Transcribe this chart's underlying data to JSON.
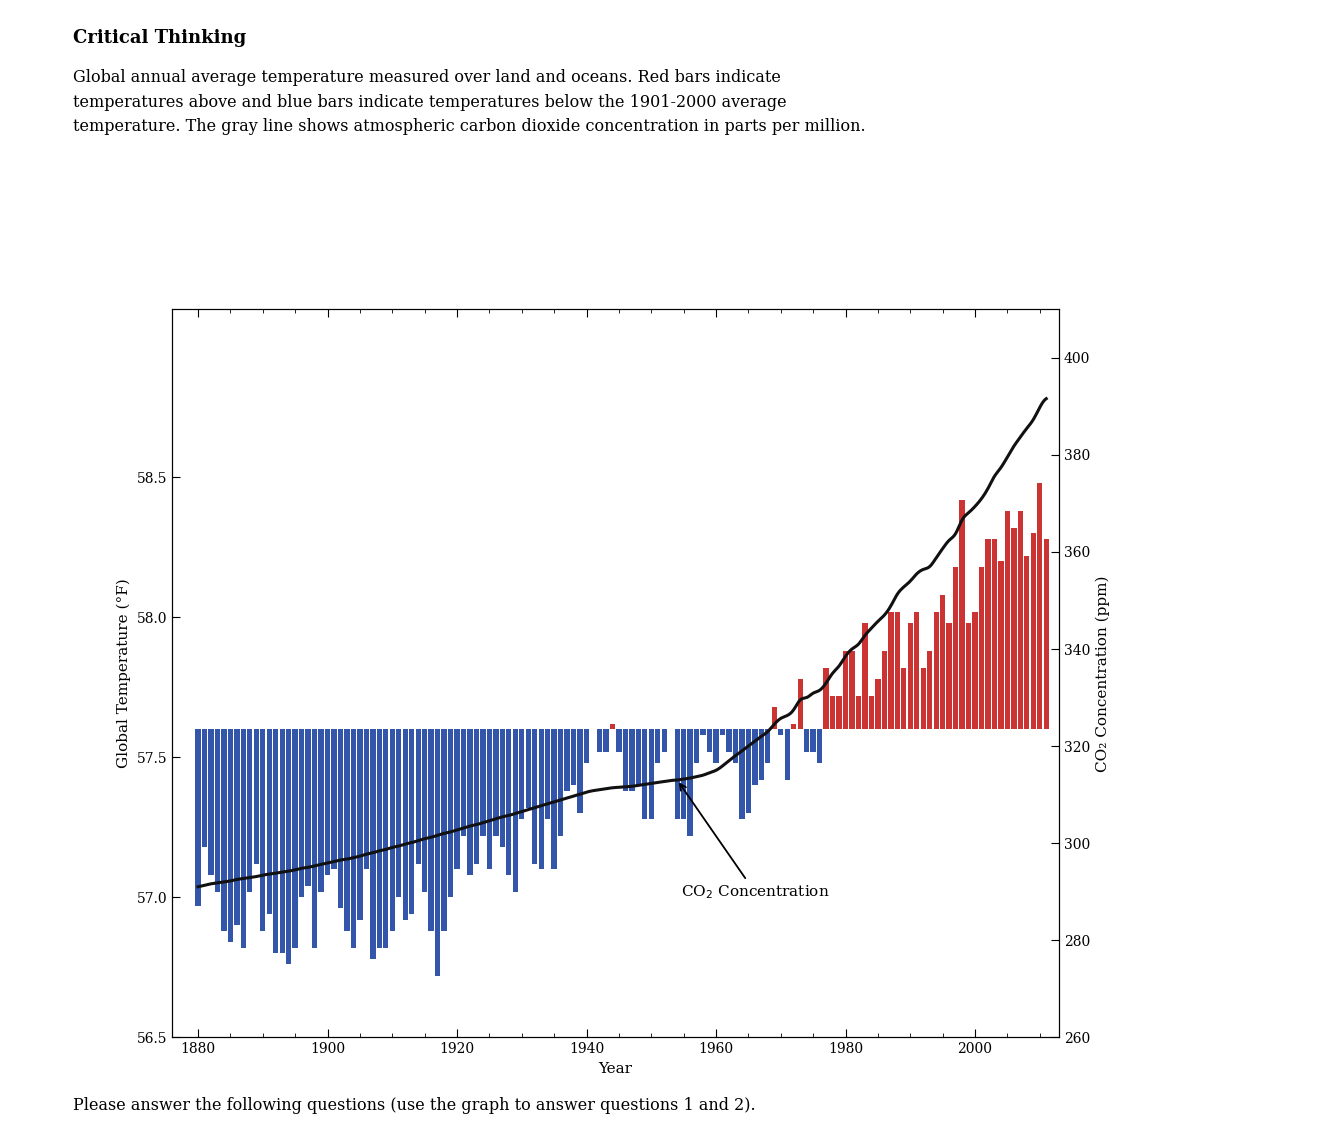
{
  "title_bold": "Critical Thinking",
  "description": "Global annual average temperature measured over land and oceans. Red bars indicate\ntemperatures above and blue bars indicate temperatures below the 1901-2000 average\ntemperature. The gray line shows atmospheric carbon dioxide concentration in parts per million.",
  "footer": "Please answer the following questions (use the graph to answer questions 1 and 2).",
  "xlabel": "Year",
  "ylabel_left": "Global Temperature (°F)",
  "ylabel_right": "CO₂ Concentration (ppm)",
  "xlim": [
    1876,
    2013
  ],
  "ylim_left": [
    56.5,
    59.1
  ],
  "ylim_right": [
    260,
    410
  ],
  "yticks_left": [
    56.5,
    57.0,
    57.5,
    58.0,
    58.5
  ],
  "yticks_right": [
    260,
    280,
    300,
    320,
    340,
    360,
    380,
    400
  ],
  "xticks": [
    1880,
    1900,
    1920,
    1940,
    1960,
    1980,
    2000
  ],
  "baseline": 57.6,
  "years": [
    1880,
    1881,
    1882,
    1883,
    1884,
    1885,
    1886,
    1887,
    1888,
    1889,
    1890,
    1891,
    1892,
    1893,
    1894,
    1895,
    1896,
    1897,
    1898,
    1899,
    1900,
    1901,
    1902,
    1903,
    1904,
    1905,
    1906,
    1907,
    1908,
    1909,
    1910,
    1911,
    1912,
    1913,
    1914,
    1915,
    1916,
    1917,
    1918,
    1919,
    1920,
    1921,
    1922,
    1923,
    1924,
    1925,
    1926,
    1927,
    1928,
    1929,
    1930,
    1931,
    1932,
    1933,
    1934,
    1935,
    1936,
    1937,
    1938,
    1939,
    1940,
    1941,
    1942,
    1943,
    1944,
    1945,
    1946,
    1947,
    1948,
    1949,
    1950,
    1951,
    1952,
    1953,
    1954,
    1955,
    1956,
    1957,
    1958,
    1959,
    1960,
    1961,
    1962,
    1963,
    1964,
    1965,
    1966,
    1967,
    1968,
    1969,
    1970,
    1971,
    1972,
    1973,
    1974,
    1975,
    1976,
    1977,
    1978,
    1979,
    1980,
    1981,
    1982,
    1983,
    1984,
    1985,
    1986,
    1987,
    1988,
    1989,
    1990,
    1991,
    1992,
    1993,
    1994,
    1995,
    1996,
    1997,
    1998,
    1999,
    2000,
    2001,
    2002,
    2003,
    2004,
    2005,
    2006,
    2007,
    2008,
    2009,
    2010,
    2011
  ],
  "temp": [
    56.97,
    57.18,
    57.08,
    57.02,
    56.88,
    56.84,
    56.9,
    56.82,
    57.02,
    57.12,
    56.88,
    56.94,
    56.8,
    56.8,
    56.76,
    56.82,
    57.0,
    57.04,
    56.82,
    57.02,
    57.08,
    57.1,
    56.96,
    56.88,
    56.82,
    56.92,
    57.1,
    56.78,
    56.82,
    56.82,
    56.88,
    57.0,
    56.92,
    56.94,
    57.12,
    57.02,
    56.88,
    56.72,
    56.88,
    57.0,
    57.1,
    57.22,
    57.08,
    57.12,
    57.22,
    57.1,
    57.22,
    57.18,
    57.08,
    57.02,
    57.28,
    57.32,
    57.12,
    57.1,
    57.28,
    57.1,
    57.22,
    57.38,
    57.4,
    57.3,
    57.48,
    57.6,
    57.52,
    57.52,
    57.62,
    57.52,
    57.38,
    57.38,
    57.4,
    57.28,
    57.28,
    57.48,
    57.52,
    57.6,
    57.28,
    57.28,
    57.22,
    57.48,
    57.58,
    57.52,
    57.48,
    57.58,
    57.52,
    57.48,
    57.28,
    57.3,
    57.4,
    57.42,
    57.48,
    57.68,
    57.58,
    57.42,
    57.62,
    57.78,
    57.52,
    57.52,
    57.48,
    57.82,
    57.72,
    57.72,
    57.88,
    57.88,
    57.72,
    57.98,
    57.72,
    57.78,
    57.88,
    58.02,
    58.02,
    57.82,
    57.98,
    58.02,
    57.82,
    57.88,
    58.02,
    58.08,
    57.98,
    58.18,
    58.42,
    57.98,
    58.02,
    58.18,
    58.28,
    58.28,
    58.2,
    58.38,
    58.32,
    58.38,
    58.22,
    58.3,
    58.48,
    58.28
  ],
  "co2_years": [
    1880,
    1881,
    1882,
    1883,
    1884,
    1885,
    1886,
    1887,
    1888,
    1889,
    1890,
    1891,
    1892,
    1893,
    1894,
    1895,
    1896,
    1897,
    1898,
    1899,
    1900,
    1901,
    1902,
    1903,
    1904,
    1905,
    1906,
    1907,
    1908,
    1909,
    1910,
    1911,
    1912,
    1913,
    1914,
    1915,
    1916,
    1917,
    1918,
    1919,
    1920,
    1921,
    1922,
    1923,
    1924,
    1925,
    1926,
    1927,
    1928,
    1929,
    1930,
    1931,
    1932,
    1933,
    1934,
    1935,
    1936,
    1937,
    1938,
    1939,
    1940,
    1941,
    1942,
    1943,
    1944,
    1945,
    1946,
    1947,
    1948,
    1949,
    1950,
    1951,
    1952,
    1953,
    1954,
    1955,
    1956,
    1957,
    1958,
    1959,
    1960,
    1961,
    1962,
    1963,
    1964,
    1965,
    1966,
    1967,
    1968,
    1969,
    1970,
    1971,
    1972,
    1973,
    1974,
    1975,
    1976,
    1977,
    1978,
    1979,
    1980,
    1981,
    1982,
    1983,
    1984,
    1985,
    1986,
    1987,
    1988,
    1989,
    1990,
    1991,
    1992,
    1993,
    1994,
    1995,
    1996,
    1997,
    1998,
    1999,
    2000,
    2001,
    2002,
    2003,
    2004,
    2005,
    2006,
    2007,
    2008,
    2009,
    2010,
    2011
  ],
  "co2_values": [
    291.0,
    291.3,
    291.6,
    291.8,
    292.0,
    292.2,
    292.5,
    292.7,
    292.9,
    293.1,
    293.4,
    293.6,
    293.8,
    294.0,
    294.2,
    294.5,
    294.8,
    295.0,
    295.3,
    295.6,
    295.9,
    296.2,
    296.5,
    296.7,
    297.0,
    297.3,
    297.7,
    298.0,
    298.4,
    298.7,
    299.1,
    299.4,
    299.8,
    300.1,
    300.5,
    300.9,
    301.2,
    301.6,
    302.0,
    302.3,
    302.7,
    303.1,
    303.5,
    303.8,
    304.2,
    304.6,
    305.0,
    305.4,
    305.7,
    306.1,
    306.5,
    306.9,
    307.3,
    307.7,
    308.1,
    308.5,
    308.9,
    309.3,
    309.7,
    310.1,
    310.5,
    310.8,
    311.0,
    311.2,
    311.4,
    311.5,
    311.6,
    311.7,
    311.9,
    312.1,
    312.3,
    312.5,
    312.7,
    312.9,
    313.0,
    313.2,
    313.4,
    313.7,
    314.0,
    314.5,
    315.0,
    315.9,
    317.0,
    318.0,
    319.0,
    320.0,
    321.0,
    322.0,
    323.0,
    324.5,
    325.7,
    326.3,
    327.5,
    329.5,
    330.0,
    330.9,
    331.5,
    333.0,
    335.0,
    336.5,
    338.5,
    340.0,
    341.0,
    342.8,
    344.3,
    345.7,
    347.0,
    348.9,
    351.3,
    352.8,
    354.0,
    355.5,
    356.4,
    357.0,
    358.8,
    360.7,
    362.4,
    363.8,
    366.6,
    368.1,
    369.4,
    371.0,
    373.1,
    375.6,
    377.4,
    379.6,
    381.8,
    383.7,
    385.5,
    387.3,
    389.8,
    391.6
  ],
  "bar_color_above": "#CC3333",
  "bar_color_below": "#3355AA",
  "line_color": "#111111",
  "background_color": "#ffffff",
  "fontsize_title": 13,
  "fontsize_desc": 11.5,
  "fontsize_labels": 11,
  "fontsize_ticks": 10,
  "fontsize_annot": 11
}
